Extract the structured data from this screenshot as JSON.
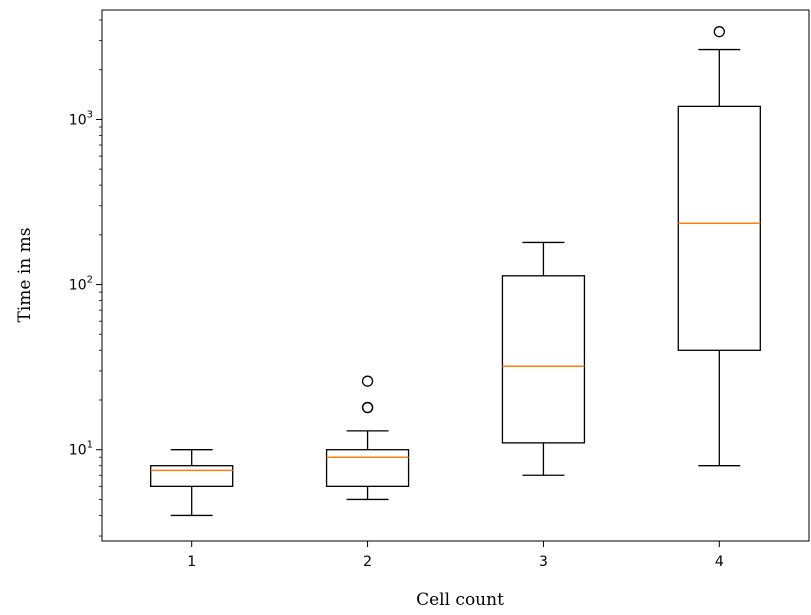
{
  "chart_data": {
    "type": "box",
    "xlabel": "Cell count",
    "ylabel": "Time in ms",
    "yscale": "log",
    "ylim": [
      2.8,
      4600
    ],
    "grid": false,
    "y_ticks": [
      {
        "value": 10,
        "base": "10",
        "exp": "1"
      },
      {
        "value": 100,
        "base": "10",
        "exp": "2"
      },
      {
        "value": 1000,
        "base": "10",
        "exp": "3"
      }
    ],
    "categories": [
      "1",
      "2",
      "3",
      "4"
    ],
    "boxes": [
      {
        "category": "1",
        "whisker_low": 4,
        "q1": 6,
        "median": 7.5,
        "q3": 8,
        "whisker_high": 10,
        "outliers": []
      },
      {
        "category": "2",
        "whisker_low": 5,
        "q1": 6,
        "median": 9,
        "q3": 10,
        "whisker_high": 13,
        "outliers": [
          18,
          18,
          26
        ]
      },
      {
        "category": "3",
        "whisker_low": 7,
        "q1": 11,
        "median": 32,
        "q3": 113,
        "whisker_high": 180,
        "outliers": []
      },
      {
        "category": "4",
        "whisker_low": 8,
        "q1": 40,
        "median": 235,
        "q3": 1200,
        "whisker_high": 2650,
        "outliers": [
          3400
        ]
      }
    ],
    "colors": {
      "box": "#000000",
      "median": "#ff7f0e",
      "outlier": "#000000",
      "background": "#ffffff"
    }
  }
}
